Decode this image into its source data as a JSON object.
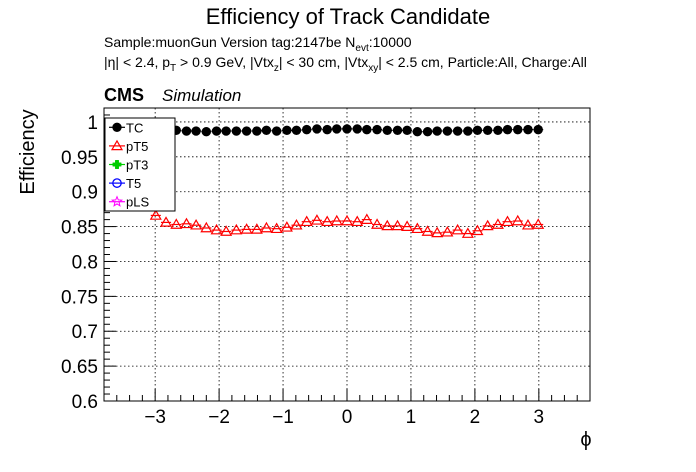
{
  "chart_data": {
    "type": "scatter",
    "title": "Efficiency of Track Candidate",
    "subtitle_line1": {
      "sample": "Sample:muonGun   Version tag:2147be  N",
      "nevt_sub": "evt",
      "nevt_value": ":10000"
    },
    "subtitle_line2_parts": [
      {
        "t": "|η| < 2.4, p"
      },
      {
        "t": "T",
        "sub": true
      },
      {
        "t": " > 0.9 GeV, |Vtx"
      },
      {
        "t": "z",
        "sub": true
      },
      {
        "t": "| < 30 cm, |Vtx"
      },
      {
        "t": "xy",
        "sub": true
      },
      {
        "t": "| < 2.5 cm, Particle:All, Charge:All"
      }
    ],
    "cms_label": "CMS",
    "simulation_label": "Simulation",
    "xlabel": "ϕ",
    "ylabel": "Efficiency",
    "xlim": [
      -3.8,
      3.8
    ],
    "ylim": [
      0.6,
      1.02
    ],
    "xticks": [
      -3,
      -2,
      -1,
      0,
      1,
      2,
      3
    ],
    "xtick_labels": [
      "−3",
      "−2",
      "−1",
      "0",
      "1",
      "2",
      "3"
    ],
    "yticks": [
      0.6,
      0.65,
      0.7,
      0.75,
      0.8,
      0.85,
      0.9,
      0.95,
      1
    ],
    "ytick_labels": [
      "0.6",
      "0.65",
      "0.7",
      "0.75",
      "0.8",
      "0.85",
      "0.9",
      "0.95",
      "1"
    ],
    "grid": true,
    "legend_position": "top-left",
    "series": [
      {
        "name": "TC",
        "color": "#000000",
        "marker": "filled-circle",
        "x": [
          -2.99,
          -2.83,
          -2.67,
          -2.51,
          -2.36,
          -2.2,
          -2.04,
          -1.89,
          -1.73,
          -1.57,
          -1.41,
          -1.26,
          -1.1,
          -0.94,
          -0.79,
          -0.63,
          -0.47,
          -0.31,
          -0.16,
          0.0,
          0.16,
          0.31,
          0.47,
          0.63,
          0.79,
          0.94,
          1.1,
          1.26,
          1.41,
          1.57,
          1.73,
          1.89,
          2.04,
          2.2,
          2.36,
          2.51,
          2.67,
          2.83,
          2.99
        ],
        "y": [
          0.988,
          0.988,
          0.988,
          0.987,
          0.987,
          0.986,
          0.987,
          0.987,
          0.987,
          0.987,
          0.987,
          0.988,
          0.987,
          0.988,
          0.988,
          0.989,
          0.99,
          0.989,
          0.99,
          0.99,
          0.99,
          0.989,
          0.989,
          0.988,
          0.988,
          0.988,
          0.986,
          0.986,
          0.987,
          0.987,
          0.987,
          0.987,
          0.988,
          0.988,
          0.988,
          0.989,
          0.989,
          0.989,
          0.989
        ]
      },
      {
        "name": "pT5",
        "color": "#ff0000",
        "marker": "open-triangle",
        "x": [
          -2.99,
          -2.83,
          -2.67,
          -2.51,
          -2.36,
          -2.2,
          -2.04,
          -1.89,
          -1.73,
          -1.57,
          -1.41,
          -1.26,
          -1.1,
          -0.94,
          -0.79,
          -0.63,
          -0.47,
          -0.31,
          -0.16,
          0.0,
          0.16,
          0.31,
          0.47,
          0.63,
          0.79,
          0.94,
          1.1,
          1.26,
          1.41,
          1.57,
          1.73,
          1.89,
          2.04,
          2.2,
          2.36,
          2.51,
          2.67,
          2.83,
          2.99
        ],
        "y": [
          0.866,
          0.856,
          0.853,
          0.854,
          0.852,
          0.848,
          0.845,
          0.843,
          0.845,
          0.846,
          0.846,
          0.848,
          0.847,
          0.849,
          0.852,
          0.857,
          0.859,
          0.857,
          0.858,
          0.858,
          0.857,
          0.86,
          0.853,
          0.851,
          0.851,
          0.85,
          0.847,
          0.843,
          0.841,
          0.842,
          0.845,
          0.84,
          0.844,
          0.851,
          0.853,
          0.857,
          0.858,
          0.852,
          0.853
        ]
      },
      {
        "name": "pT3",
        "color": "#00cc00",
        "marker": "cross",
        "x": [],
        "y": []
      },
      {
        "name": "T5",
        "color": "#0000ff",
        "marker": "open-circle",
        "x": [],
        "y": []
      },
      {
        "name": "pLS",
        "color": "#ff00ff",
        "marker": "star",
        "x": [],
        "y": []
      }
    ]
  }
}
